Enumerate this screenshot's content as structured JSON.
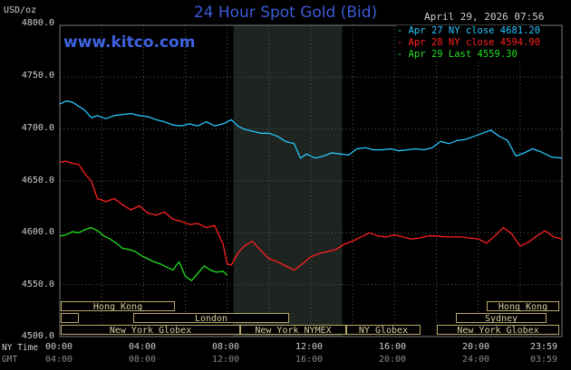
{
  "header": {
    "title": "24 Hour Spot Gold (Bid)",
    "timestamp": "April 29, 2026 07:56",
    "units": "USD/oz",
    "brand": "www.kitco.com"
  },
  "legend": [
    {
      "label": "Apr 27 NY close 4681.20",
      "color": "#27c6ff"
    },
    {
      "label": "Apr 28 NY close 4594.90",
      "color": "#ff2020"
    },
    {
      "label": "Apr 29 Last 4559.30",
      "color": "#22e022"
    }
  ],
  "axes": {
    "y_ticks": [
      "4800.0",
      "4750.0",
      "4700.0",
      "4650.0",
      "4600.0",
      "4550.0",
      "4500.0"
    ],
    "x_label_ny": "NY Time",
    "x_label_gmt": "GMT",
    "x_ticks_ny": [
      "00:00",
      "04:00",
      "08:00",
      "12:00",
      "16:00",
      "20:00",
      "23:59"
    ],
    "x_ticks_gmt": [
      "04:00",
      "08:00",
      "12:00",
      "16:00",
      "20:00",
      "24:00",
      "03:59"
    ]
  },
  "sessions": [
    {
      "label": "Hong Kong"
    },
    {
      "label": "London"
    },
    {
      "label": "New York Globex"
    },
    {
      "label": "New York NYMEX"
    },
    {
      "label": "NY Globex"
    },
    {
      "label": "Hong Kong"
    },
    {
      "label": "Sydney"
    },
    {
      "label": "New York Globex"
    }
  ],
  "chart_data": {
    "type": "line",
    "x_unit": "hours (NY time)",
    "ylim": [
      4500,
      4800
    ],
    "xlim": [
      0,
      24
    ],
    "grid": true,
    "shaded_hours": [
      8.3,
      13.5
    ],
    "series": [
      {
        "name": "Apr 27 NY close 4681.20",
        "color": "#27c6ff",
        "x": [
          0,
          0.3,
          0.6,
          0.9,
          1.2,
          1.5,
          1.8,
          2.2,
          2.6,
          3.0,
          3.4,
          3.8,
          4.2,
          4.6,
          5.0,
          5.4,
          5.8,
          6.2,
          6.6,
          7.0,
          7.4,
          7.8,
          8.2,
          8.5,
          8.8,
          9.2,
          9.6,
          10.0,
          10.4,
          10.8,
          11.2,
          11.5,
          11.8,
          12.2,
          12.6,
          13.0,
          13.4,
          13.8,
          14.2,
          14.6,
          15.0,
          15.4,
          15.8,
          16.2,
          16.6,
          17.0,
          17.4,
          17.8,
          18.2,
          18.6,
          19.0,
          19.4,
          19.8,
          20.2,
          20.6,
          21.0,
          21.4,
          21.8,
          22.2,
          22.6,
          23.0,
          23.5,
          24.0
        ],
        "values": [
          4724,
          4727,
          4726,
          4722,
          4718,
          4711,
          4713,
          4710,
          4713,
          4714,
          4715,
          4713,
          4712,
          4709,
          4707,
          4704,
          4703,
          4705,
          4703,
          4707,
          4703,
          4705,
          4709,
          4703,
          4700,
          4698,
          4696,
          4696,
          4693,
          4688,
          4686,
          4672,
          4676,
          4672,
          4674,
          4677,
          4676,
          4675,
          4681,
          4682,
          4680,
          4680,
          4681,
          4679,
          4680,
          4681,
          4680,
          4682,
          4688,
          4686,
          4689,
          4690,
          4693,
          4696,
          4699,
          4693,
          4689,
          4674,
          4677,
          4681,
          4678,
          4673,
          4672
        ]
      },
      {
        "name": "Apr 28 NY close 4594.90",
        "color": "#ff2020",
        "x": [
          0,
          0.3,
          0.6,
          0.9,
          1.2,
          1.5,
          1.8,
          2.2,
          2.6,
          3.0,
          3.4,
          3.8,
          4.2,
          4.6,
          5.0,
          5.4,
          5.8,
          6.2,
          6.6,
          7.0,
          7.4,
          7.8,
          8.0,
          8.2,
          8.5,
          8.8,
          9.2,
          9.6,
          10.0,
          10.4,
          10.8,
          11.2,
          11.6,
          12.0,
          12.4,
          12.8,
          13.2,
          13.6,
          14.0,
          14.4,
          14.8,
          15.2,
          15.6,
          16.0,
          16.4,
          16.8,
          17.2,
          17.6,
          18.0,
          18.4,
          18.8,
          19.2,
          19.6,
          20.0,
          20.4,
          20.8,
          21.2,
          21.6,
          22.0,
          22.4,
          22.8,
          23.2,
          23.6,
          24.0
        ],
        "values": [
          4668,
          4669,
          4667,
          4666,
          4657,
          4650,
          4633,
          4630,
          4633,
          4627,
          4622,
          4626,
          4619,
          4617,
          4620,
          4613,
          4611,
          4608,
          4609,
          4605,
          4607,
          4589,
          4570,
          4569,
          4580,
          4587,
          4592,
          4583,
          4575,
          4572,
          4568,
          4564,
          4570,
          4577,
          4580,
          4582,
          4584,
          4589,
          4592,
          4596,
          4600,
          4597,
          4596,
          4598,
          4596,
          4594,
          4595,
          4597,
          4597,
          4596,
          4596,
          4596,
          4595,
          4594,
          4590,
          4597,
          4605,
          4599,
          4587,
          4591,
          4597,
          4602,
          4596,
          4594
        ]
      },
      {
        "name": "Apr 29 Last 4559.30",
        "color": "#22e022",
        "x": [
          0,
          0.3,
          0.6,
          0.9,
          1.2,
          1.5,
          1.8,
          2.1,
          2.4,
          2.7,
          3.0,
          3.3,
          3.6,
          3.9,
          4.2,
          4.5,
          4.8,
          5.1,
          5.4,
          5.7,
          6.0,
          6.3,
          6.6,
          6.9,
          7.2,
          7.5,
          7.8,
          8.0
        ],
        "values": [
          4597,
          4598,
          4601,
          4600,
          4603,
          4605,
          4602,
          4597,
          4594,
          4590,
          4585,
          4584,
          4582,
          4578,
          4575,
          4572,
          4570,
          4567,
          4564,
          4572,
          4558,
          4554,
          4561,
          4568,
          4564,
          4562,
          4563,
          4559
        ]
      }
    ]
  }
}
